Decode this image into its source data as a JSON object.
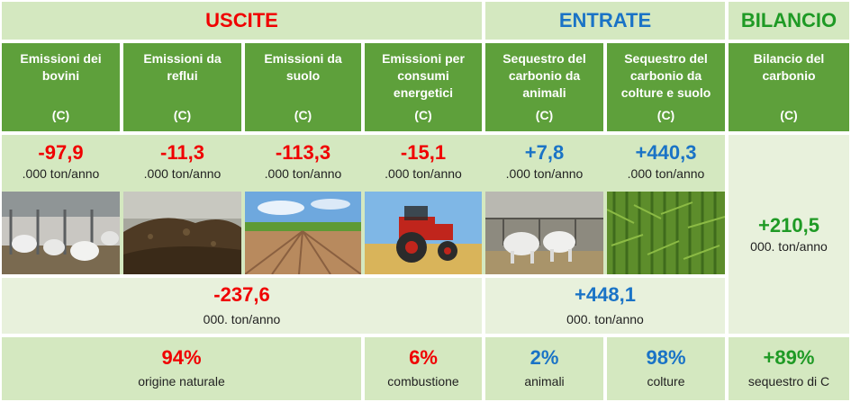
{
  "sections": {
    "uscite": "USCITE",
    "entrate": "ENTRATE",
    "bilancio": "BILANCIO"
  },
  "columns": [
    {
      "title": "Emissioni dei bovini",
      "unit": "(C)",
      "value": "-97,9",
      "value_unit": ".000 ton/anno",
      "image": "cows-in-barn"
    },
    {
      "title": "Emissioni da reflui",
      "unit": "(C)",
      "value": "-11,3",
      "value_unit": ".000 ton/anno",
      "image": "manure-heap"
    },
    {
      "title": "Emissioni da suolo",
      "unit": "(C)",
      "value": "-113,3",
      "value_unit": ".000 ton/anno",
      "image": "plowed-field"
    },
    {
      "title": "Emissioni per consumi energetici",
      "unit": "(C)",
      "value": "-15,1",
      "value_unit": ".000 ton/anno",
      "image": "tractor"
    },
    {
      "title": "Sequestro del carbonio da animali",
      "unit": "(C)",
      "value": "+7,8",
      "value_unit": ".000 ton/anno",
      "image": "white-cows"
    },
    {
      "title": "Sequestro del carbonio da colture e suolo",
      "unit": "(C)",
      "value": "+440,3",
      "value_unit": ".000 ton/anno",
      "image": "corn-field"
    },
    {
      "title": "Bilancio del carbonio",
      "unit": "(C)",
      "value": "+210,5",
      "value_unit": "000. ton/anno"
    }
  ],
  "totals": {
    "uscite": {
      "value": "-237,6",
      "unit": "000. ton/anno"
    },
    "entrate": {
      "value": "+448,1",
      "unit": "000. ton/anno"
    }
  },
  "shares": {
    "origine_naturale": {
      "pct": "94%",
      "label": "origine naturale"
    },
    "combustione": {
      "pct": "6%",
      "label": "combustione"
    },
    "animali": {
      "pct": "2%",
      "label": "animali"
    },
    "colture": {
      "pct": "98%",
      "label": "colture"
    },
    "sequestro": {
      "pct": "+89%",
      "label": "sequestro di C"
    }
  },
  "colors": {
    "red": "#f00000",
    "blue": "#1a73c6",
    "green": "#1f9a25",
    "header_green": "#5ea03b",
    "light_green": "#d4e8c0"
  }
}
